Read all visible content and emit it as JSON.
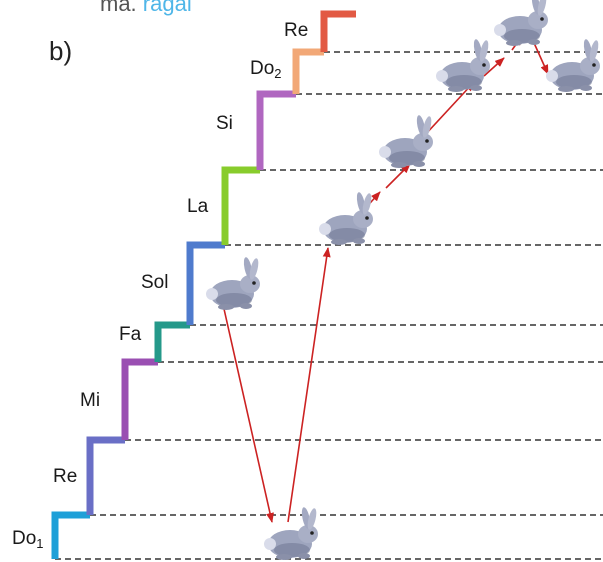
{
  "top_fragment": {
    "text": "ma. ",
    "accent_text": "ragal"
  },
  "part_label": "b)",
  "notes": [
    {
      "name": "Do",
      "sub": "1",
      "color": "#1ea0d8"
    },
    {
      "name": "Re",
      "sub": "",
      "color": "#6a6fc6"
    },
    {
      "name": "Mi",
      "sub": "",
      "color": "#9a4fb2"
    },
    {
      "name": "Fa",
      "sub": "",
      "color": "#25998a"
    },
    {
      "name": "Sol",
      "sub": "",
      "color": "#4f7bcd"
    },
    {
      "name": "La",
      "sub": "",
      "color": "#88cc2c"
    },
    {
      "name": "Si",
      "sub": "",
      "color": "#b067c0"
    },
    {
      "name": "Do",
      "sub": "2",
      "color": "#f2a877"
    },
    {
      "name": "Re",
      "sub": "",
      "color": "#e25a44"
    }
  ],
  "rabbit_path": [
    "Sol",
    "Do1",
    "La",
    "Si",
    "Do2",
    "Re",
    "Do2"
  ],
  "colors": {
    "arrow": "#cc2222",
    "guide_line": "#333333",
    "rabbit_body": "#9ea5be",
    "rabbit_shadow": "#6f7691"
  }
}
